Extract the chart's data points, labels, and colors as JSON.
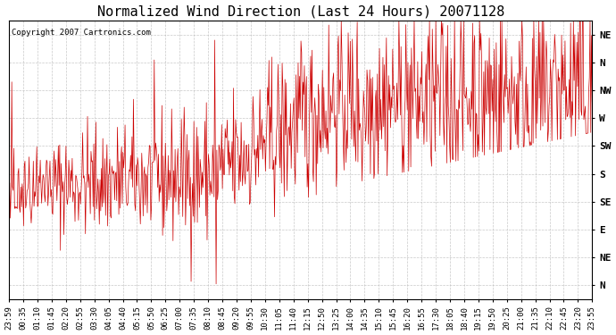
{
  "title": "Normalized Wind Direction (Last 24 Hours) 20071128",
  "copyright": "Copyright 2007 Cartronics.com",
  "title_fontsize": 11,
  "background_color": "#ffffff",
  "plot_bg_color": "#ffffff",
  "line_color": "#cc0000",
  "grid_color": "#bbbbbb",
  "ytick_labels": [
    "NE",
    "N",
    "NW",
    "W",
    "SW",
    "S",
    "SE",
    "E",
    "NE",
    "N"
  ],
  "ytick_values": [
    10,
    9,
    8,
    7,
    6,
    5,
    4,
    3,
    2,
    1
  ],
  "xtick_labels": [
    "23:59",
    "00:35",
    "01:10",
    "01:45",
    "02:20",
    "02:55",
    "03:30",
    "04:05",
    "04:40",
    "05:15",
    "05:50",
    "06:25",
    "07:00",
    "07:35",
    "08:10",
    "08:45",
    "09:20",
    "09:55",
    "10:30",
    "11:05",
    "11:40",
    "12:15",
    "12:50",
    "13:25",
    "14:00",
    "14:35",
    "15:10",
    "15:45",
    "16:20",
    "16:55",
    "17:30",
    "18:05",
    "18:40",
    "19:15",
    "19:50",
    "20:25",
    "21:00",
    "21:35",
    "22:10",
    "22:45",
    "23:20",
    "23:55"
  ],
  "seed": 42,
  "n_points": 840,
  "ylim_min": 0.5,
  "ylim_max": 10.5,
  "figwidth": 6.9,
  "figheight": 3.75,
  "dpi": 100
}
